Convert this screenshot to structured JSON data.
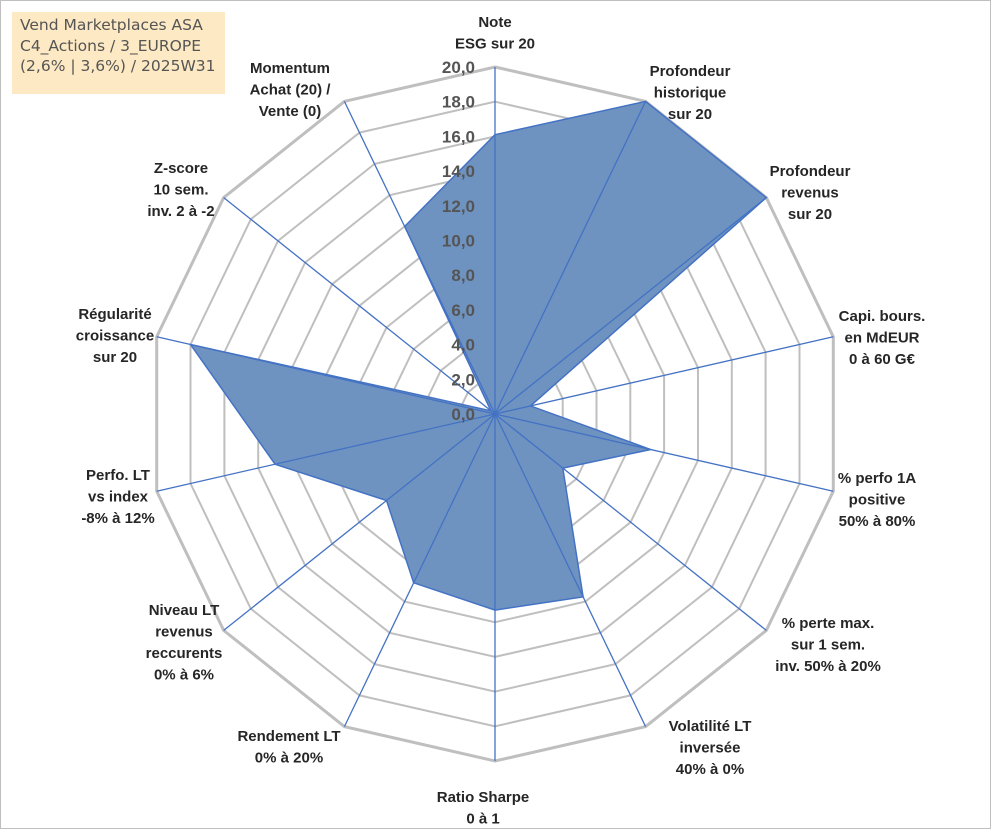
{
  "title_lines": [
    "Vend Marketplaces ASA",
    "C4_Actions / 3_EUROPE",
    "(2,6% | 3,6%) / 2025W31"
  ],
  "chart_data": {
    "type": "radar",
    "rmin": 0,
    "rmax": 20,
    "tick_step": 2,
    "tick_labels": [
      "0,0",
      "2,0",
      "4,0",
      "6,0",
      "8,0",
      "10,0",
      "12,0",
      "14,0",
      "16,0",
      "18,0",
      "20,0"
    ],
    "grid": true,
    "fill_color": "#6e93c0",
    "line_color": "#4472c4",
    "grid_color": "#bfbfbf",
    "axes": [
      {
        "label": [
          "Note",
          "ESG sur 20"
        ],
        "value": 16.1
      },
      {
        "label": [
          "Profondeur",
          "historique",
          "sur 20"
        ],
        "value": 20.0
      },
      {
        "label": [
          "Profondeur",
          "revenus",
          "sur 20"
        ],
        "value": 20.0
      },
      {
        "label": [
          "Capi. bours.",
          "en MdEUR",
          "0 à 60 G€"
        ],
        "value": 2.1
      },
      {
        "label": [
          "% perfo 1A",
          "positive",
          "50% à 80%"
        ],
        "value": 9.2
      },
      {
        "label": [
          "% perte max.",
          "sur 1 sem.",
          "inv. 50% à 20%"
        ],
        "value": 5.0
      },
      {
        "label": [
          "Volatilité LT",
          "inversée",
          "40% à 0%"
        ],
        "value": 11.7
      },
      {
        "label": [
          "Ratio Sharpe",
          "0 à 1"
        ],
        "value": 11.3
      },
      {
        "label": [
          "Rendement LT",
          "0% à 20%"
        ],
        "value": 10.8
      },
      {
        "label": [
          "Niveau LT",
          "revenus",
          "reccurents",
          "0% à 6%"
        ],
        "value": 8.0
      },
      {
        "label": [
          "Perfo. LT",
          "vs index",
          "-8% à 12%"
        ],
        "value": 13.0
      },
      {
        "label": [
          "Régularité",
          "croissance",
          "sur 20"
        ],
        "value": 18.0
      },
      {
        "label": [
          "Z-score",
          "10 sem.",
          "inv. 2 à -2"
        ],
        "value": 0.3
      },
      {
        "label": [
          "Momentum",
          "Achat (20) /",
          "Vente (0)"
        ],
        "value": 12.0
      }
    ]
  }
}
